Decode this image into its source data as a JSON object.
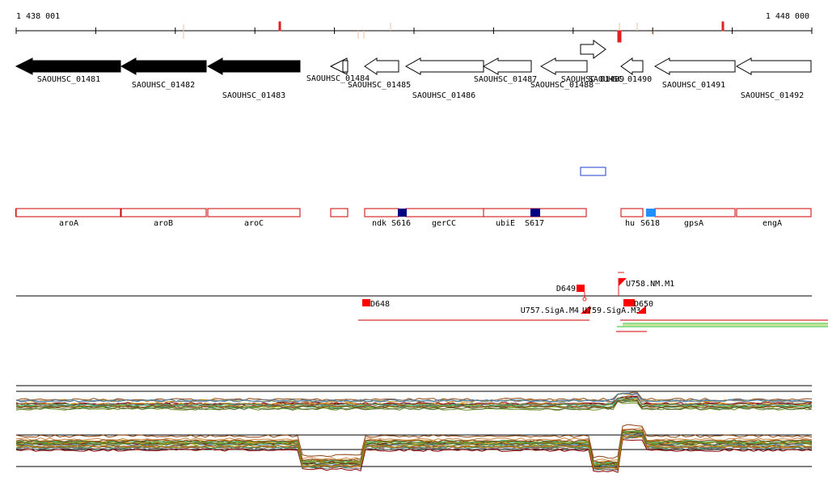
{
  "ruler": {
    "start_label": "1 438 001",
    "end_label": "1 448 000"
  },
  "genes": [
    {
      "id": "SAOUHSC_01481",
      "strand": "-",
      "fill": "#000000"
    },
    {
      "id": "SAOUHSC_01482",
      "strand": "-",
      "fill": "#000000"
    },
    {
      "id": "SAOUHSC_01483",
      "strand": "-",
      "fill": "#000000"
    },
    {
      "id": "SAOUHSC_01484",
      "strand": "-",
      "fill": "#ffffff"
    },
    {
      "id": "SAOUHSC_01485",
      "strand": "-",
      "fill": "#ffffff"
    },
    {
      "id": "SAOUHSC_01486",
      "strand": "-",
      "fill": "#ffffff"
    },
    {
      "id": "SAOUHSC_01487",
      "strand": "-",
      "fill": "#ffffff"
    },
    {
      "id": "SAOUHSC_01488",
      "strand": "-",
      "fill": "#ffffff"
    },
    {
      "id": "SAOUHSC_01489",
      "strand": "+",
      "fill": "#ffffff"
    },
    {
      "id": "SAOUHSC_01490",
      "strand": "-",
      "fill": "#ffffff"
    },
    {
      "id": "SAOUHSC_01491",
      "strand": "-",
      "fill": "#ffffff"
    },
    {
      "id": "SAOUHSC_01492",
      "strand": "-",
      "fill": "#ffffff"
    }
  ],
  "gene_names": [
    "aroA",
    "aroB",
    "aroC",
    "ndk",
    "gerCC",
    "ubiE",
    "hu",
    "gpsA",
    "engA"
  ],
  "sites": [
    {
      "label": "S616",
      "color": "#000080"
    },
    {
      "label": "S617",
      "color": "#000080"
    },
    {
      "label": "S618",
      "color": "#1e90ff"
    }
  ],
  "features": {
    "downstream": [
      "D648",
      "D649"
    ],
    "upstream": [
      "U757.SigA.M4",
      "U759.SigA.M3",
      "U758.NM.M1"
    ],
    "overlap_label": "D650"
  },
  "colors": {
    "gene_outline": "#cc0000",
    "feature_red": "#ff0000",
    "box_blue": "#1e3ccf",
    "track_line": "#000000"
  }
}
